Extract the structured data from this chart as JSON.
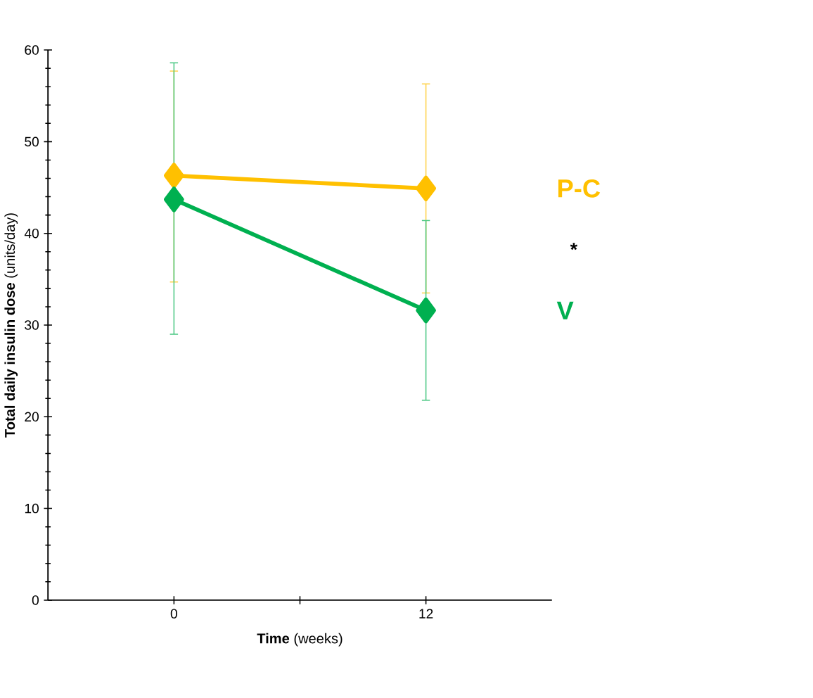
{
  "chart_data": {
    "type": "line",
    "xlabel": "**Time** (weeks)",
    "ylabel": "**Total daily insulin dose** (units/day)",
    "x": [
      0,
      12
    ],
    "xlim": [
      -6,
      18
    ],
    "xticks": [
      0,
      {
        "value": 6,
        "label": null
      },
      12
    ],
    "ylim": [
      0,
      60
    ],
    "yticks": [
      0,
      10,
      20,
      30,
      40,
      50,
      60
    ],
    "series": [
      {
        "name": "P-C",
        "color": "#ffc000",
        "values": [
          46.3,
          44.9
        ],
        "errors": [
          [
            34.7,
            57.7
          ],
          [
            33.5,
            56.3
          ]
        ]
      },
      {
        "name": "V",
        "color": "#00b050",
        "values": [
          43.7,
          31.6
        ],
        "errors": [
          [
            29.0,
            58.6
          ],
          [
            21.8,
            41.4
          ]
        ]
      }
    ],
    "annotations": [
      "*"
    ],
    "marker": "diamond",
    "line_style": "solid",
    "legend": false,
    "grid": false
  }
}
